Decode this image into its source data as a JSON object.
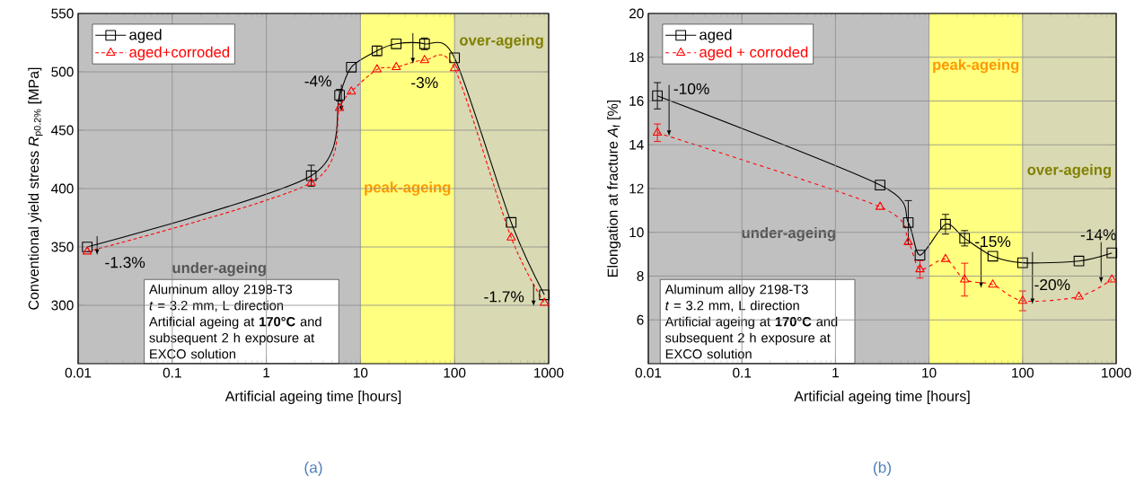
{
  "chart_data": [
    {
      "type": "line",
      "xlabel": "Artificial ageing time [hours]",
      "ylabel": "Conventional yield stress *R*$_{p0.2%}$ [MPa]",
      "x": [
        0.0125,
        3,
        6,
        8,
        15,
        24,
        48,
        100,
        400,
        900
      ],
      "series": [
        {
          "name": "aged",
          "color": "#000000",
          "marker": "square",
          "line_style": "solid",
          "values": [
            350,
            411,
            480,
            504,
            518,
            524,
            524,
            512,
            371,
            309
          ],
          "errors": [
            null,
            9,
            5,
            null,
            4,
            null,
            5,
            null,
            null,
            null
          ]
        },
        {
          "name": "aged+corroded",
          "color": "#ff0000",
          "marker": "triangle",
          "line_style": "dotted",
          "values": [
            346,
            405,
            469,
            483,
            502,
            504,
            510,
            503,
            358,
            302
          ],
          "errors": [
            null,
            null,
            null,
            null,
            null,
            null,
            null,
            null,
            null,
            null
          ]
        }
      ],
      "xlim": [
        0.01,
        1000
      ],
      "xticks": [
        0.01,
        0.1,
        1,
        10,
        100,
        1000
      ],
      "ylim": [
        250,
        550
      ],
      "yticks": [
        300,
        350,
        400,
        450,
        500,
        550
      ],
      "log": "x",
      "grid": true,
      "legend": "top left",
      "bands": [
        {
          "axis": "x",
          "from": 0.01,
          "to": 10,
          "label": "under-ageing",
          "color": "#c0c0c0"
        },
        {
          "axis": "x",
          "from": 10,
          "to": 100,
          "label": "peak-ageing",
          "color": "#ffff80"
        },
        {
          "axis": "x",
          "from": 100,
          "to": 1000,
          "label": "over-ageing",
          "color": "#d9d9b3"
        }
      ],
      "annotations": [
        {
          "text": "-1.3%",
          "x": 0.0125,
          "y": 346
        },
        {
          "text": "-4%",
          "x": 6,
          "y": 469
        },
        {
          "text": "-3%",
          "x": 48,
          "y": 510
        },
        {
          "text": "-1.7%",
          "x": 900,
          "y": 302
        },
        "Aluminum alloy 2198-T3",
        "*t* = 3.2 mm, L direction",
        "Artificial ageing at **170°C** and subsequent 2 h exposure at EXCO solution",
        "(a)"
      ]
    },
    {
      "type": "line",
      "xlabel": "Artificial ageing time [hours]",
      "ylabel": "Elongation at fracture *A*$_{f}$ [%]",
      "x": [
        0.0125,
        3,
        6,
        8,
        15,
        24,
        48,
        100,
        400,
        900
      ],
      "series": [
        {
          "name": "aged",
          "color": "#000000",
          "marker": "square",
          "line_style": "solid",
          "values": [
            16.24,
            12.16,
            10.45,
            8.96,
            10.37,
            9.73,
            8.91,
            8.61,
            8.69,
            9.06
          ],
          "errors": [
            0.6,
            null,
            1.0,
            null,
            0.45,
            0.35,
            null,
            null,
            null,
            null
          ]
        },
        {
          "name": "aged + corroded",
          "color": "#ff0000",
          "marker": "triangle",
          "line_style": "dashed",
          "values": [
            14.55,
            11.16,
            9.55,
            8.31,
            8.78,
            7.84,
            7.61,
            6.87,
            7.06,
            7.84
          ],
          "errors": [
            0.4,
            null,
            null,
            0.4,
            null,
            0.75,
            null,
            0.45,
            null,
            null
          ]
        }
      ],
      "xlim": [
        0.01,
        1000
      ],
      "xticks": [
        0.01,
        0.1,
        1,
        10,
        100,
        1000
      ],
      "ylim": [
        4,
        20
      ],
      "yticks": [
        6,
        8,
        10,
        12,
        14,
        16,
        18,
        20
      ],
      "log": "x",
      "grid": true,
      "legend": "top left",
      "bands": [
        {
          "axis": "x",
          "from": 0.01,
          "to": 10,
          "label": "under-ageing",
          "color": "#c0c0c0"
        },
        {
          "axis": "x",
          "from": 10,
          "to": 100,
          "label": "peak-ageing",
          "color": "#ffff80"
        },
        {
          "axis": "x",
          "from": 100,
          "to": 1000,
          "label": "over-ageing",
          "color": "#d9d9b3"
        }
      ],
      "annotations": [
        {
          "text": "-10%",
          "x": 0.0125,
          "y": 14.55
        },
        {
          "text": "-15%",
          "x": 48,
          "y": 7.61
        },
        {
          "text": "-20%",
          "x": 100,
          "y": 6.87
        },
        {
          "text": "-14%",
          "x": 900,
          "y": 7.84
        },
        "Aluminum alloy 2198-T3",
        "*t* = 3.2 mm, L direction",
        "Artificial ageing at **170°C** and subsequent 2 h exposure at EXCO solution",
        "(b)"
      ]
    }
  ]
}
